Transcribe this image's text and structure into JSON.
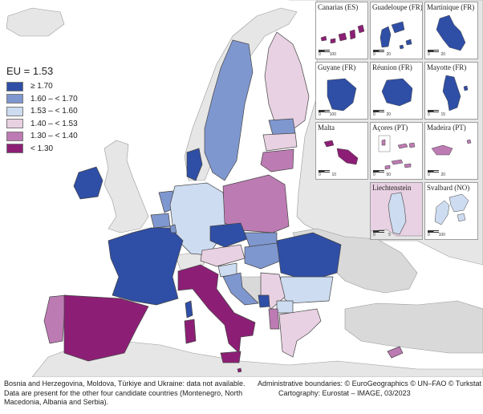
{
  "legend": {
    "title": "EU = 1.53",
    "items": [
      {
        "label": "≥ 1.70",
        "color": "#2f4ea6"
      },
      {
        "label": "1.60 – < 1.70",
        "color": "#7f97cf"
      },
      {
        "label": "1.53 – < 1.60",
        "color": "#cddcf0"
      },
      {
        "label": "1.40 – < 1.53",
        "color": "#e8d1e2"
      },
      {
        "label": "1.30 – < 1.40",
        "color": "#bd7bb3"
      },
      {
        "label": "< 1.30",
        "color": "#8c1f75"
      }
    ],
    "no_data_color": "#d9d9d9",
    "non_eu_color": "#e6e6e6",
    "sea_color": "#ffffff"
  },
  "insets": [
    {
      "label": "Canarias (ES)",
      "scale": [
        "0",
        "100"
      ]
    },
    {
      "label": "Guadeloupe (FR)",
      "scale": [
        "0",
        "20"
      ]
    },
    {
      "label": "Martinique (FR)",
      "scale": [
        "0",
        "20"
      ]
    },
    {
      "label": "Guyane (FR)",
      "scale": [
        "0",
        "100"
      ]
    },
    {
      "label": "Réunion (FR)",
      "scale": [
        "0",
        "20"
      ]
    },
    {
      "label": "Mayotte (FR)",
      "scale": [
        "0",
        "15"
      ]
    },
    {
      "label": "Malta",
      "scale": [
        "0",
        "10"
      ]
    },
    {
      "label": "Açores (PT)",
      "scale": [
        "0",
        "50"
      ]
    },
    {
      "label": "Madeira (PT)",
      "scale": [
        "0",
        "20"
      ]
    },
    {
      "label": "Liechtenstein",
      "scale": [
        "0",
        "5"
      ]
    },
    {
      "label": "Svalbard (NO)",
      "scale": [
        "0",
        "100"
      ]
    }
  ],
  "footer": {
    "note_lines": [
      "Bosnia and Herzegovina, Moldova, Türkiye and Ukraine: data not available.",
      "Data are present for the other four candidate countries (Montenegro, North",
      "Macedonia, Albania and Serbia)."
    ],
    "credit_lines": [
      "Administrative boundaries: © EuroGeographics © UN–FAO © Turkstat",
      "Cartography: Eurostat – IMAGE, 03/2023"
    ]
  }
}
